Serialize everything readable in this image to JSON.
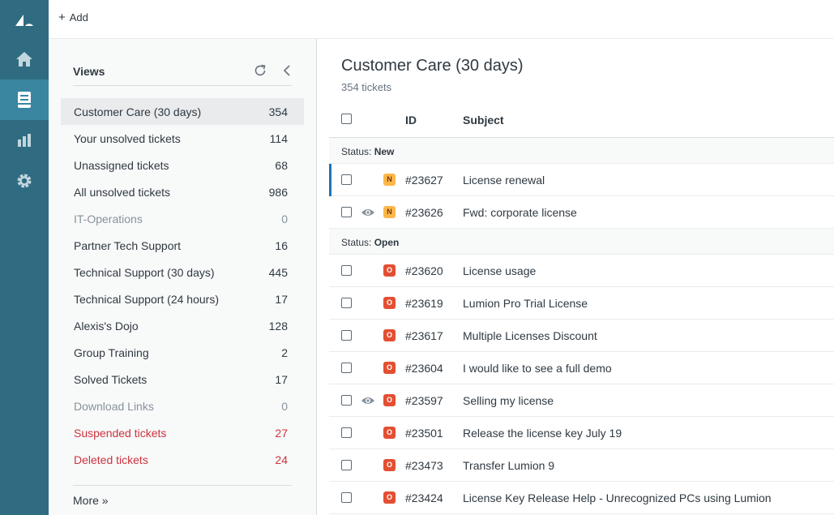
{
  "topbar": {
    "add_label": "Add"
  },
  "colors": {
    "rail": "#2f6c82",
    "rail_active": "#3a85a0",
    "new_badge": "#ffb648",
    "open_badge": "#e34f32",
    "danger": "#cc3340",
    "accent": "#1f73b7"
  },
  "rail": {
    "icons": [
      "logo-icon",
      "home-icon",
      "views-icon",
      "reports-icon",
      "gear-icon"
    ]
  },
  "views": {
    "title": "Views",
    "items": [
      {
        "label": "Customer Care (30 days)",
        "count": "354"
      },
      {
        "label": "Your unsolved tickets",
        "count": "114"
      },
      {
        "label": "Unassigned tickets",
        "count": "68"
      },
      {
        "label": "All unsolved tickets",
        "count": "986"
      },
      {
        "label": "IT-Operations",
        "count": "0"
      },
      {
        "label": "Partner Tech Support",
        "count": "16"
      },
      {
        "label": "Technical Support (30 days)",
        "count": "445"
      },
      {
        "label": "Technical Support (24 hours)",
        "count": "17"
      },
      {
        "label": "Alexis's Dojo",
        "count": "128"
      },
      {
        "label": "Group Training",
        "count": "2"
      },
      {
        "label": "Solved Tickets",
        "count": "17"
      },
      {
        "label": "Download Links",
        "count": "0"
      },
      {
        "label": "Suspended tickets",
        "count": "27"
      },
      {
        "label": "Deleted tickets",
        "count": "24"
      }
    ],
    "more_label": "More »"
  },
  "main": {
    "title": "Customer Care (30 days)",
    "ticket_count": "354 tickets",
    "columns": {
      "id": "ID",
      "subject": "Subject"
    },
    "groups": [
      {
        "prefix": "Status:",
        "status": "New",
        "tickets": [
          {
            "badge": "N",
            "id": "#23627",
            "subject": "License renewal",
            "viewed": false
          },
          {
            "badge": "N",
            "id": "#23626",
            "subject": "Fwd: corporate license",
            "viewed": true
          }
        ]
      },
      {
        "prefix": "Status:",
        "status": "Open",
        "tickets": [
          {
            "badge": "O",
            "id": "#23620",
            "subject": "License usage",
            "viewed": false
          },
          {
            "badge": "O",
            "id": "#23619",
            "subject": "Lumion Pro Trial License",
            "viewed": false
          },
          {
            "badge": "O",
            "id": "#23617",
            "subject": "Multiple Licenses Discount",
            "viewed": false
          },
          {
            "badge": "O",
            "id": "#23604",
            "subject": "I would like to see a full demo",
            "viewed": false
          },
          {
            "badge": "O",
            "id": "#23597",
            "subject": "Selling my license",
            "viewed": true
          },
          {
            "badge": "O",
            "id": "#23501",
            "subject": "Release the license key July 19",
            "viewed": false
          },
          {
            "badge": "O",
            "id": "#23473",
            "subject": "Transfer Lumion 9",
            "viewed": false
          },
          {
            "badge": "O",
            "id": "#23424",
            "subject": "License Key Release Help - Unrecognized PCs using Lumion",
            "viewed": false
          }
        ]
      }
    ]
  }
}
